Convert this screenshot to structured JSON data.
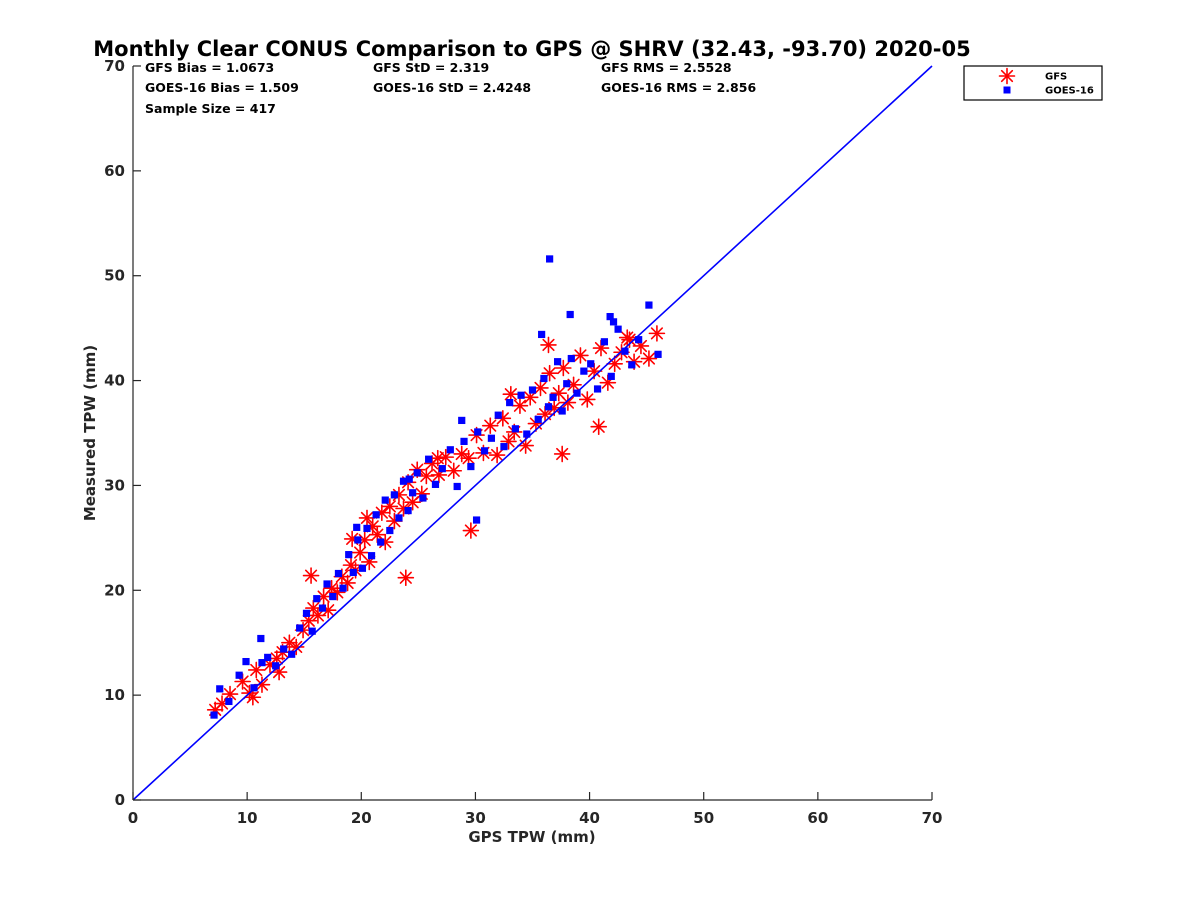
{
  "chart_data": {
    "type": "scatter",
    "title": "Monthly Clear CONUS Comparison to GPS @ SHRV (32.43, -93.70) 2020-05",
    "xlabel": "GPS TPW (mm)",
    "ylabel": "Measured TPW (mm)",
    "xlim": [
      0,
      70
    ],
    "ylim": [
      0,
      70
    ],
    "xticks": [
      "0",
      "10",
      "20",
      "30",
      "40",
      "50",
      "60",
      "70"
    ],
    "yticks": [
      "0",
      "10",
      "20",
      "30",
      "40",
      "50",
      "60",
      "70"
    ],
    "grid": false,
    "legend_position": "top-right",
    "reference_line": {
      "x": [
        0,
        70
      ],
      "y": [
        0,
        70
      ],
      "color": "#0000ff"
    },
    "stats": [
      [
        "GFS Bias = 1.0673",
        "GFS StD = 2.319",
        "GFS RMS = 2.5528"
      ],
      [
        "GOES-16 Bias = 1.509",
        "GOES-16 StD = 2.4248",
        "GOES-16 RMS = 2.856"
      ],
      [
        "Sample Size = 417"
      ]
    ],
    "series": [
      {
        "name": "GFS",
        "marker": "asterisk",
        "color": "#ff0000",
        "x": [
          7.2,
          7.8,
          8.5,
          9.6,
          10.2,
          10.8,
          11.3,
          12.0,
          12.6,
          13.1,
          13.7,
          14.3,
          14.9,
          15.4,
          15.8,
          16.2,
          16.7,
          17.1,
          17.4,
          17.9,
          18.3,
          18.8,
          19.1,
          19.5,
          19.9,
          20.3,
          20.7,
          21.0,
          21.4,
          21.8,
          22.1,
          22.5,
          22.9,
          23.3,
          23.7,
          24.1,
          24.5,
          24.9,
          25.3,
          25.7,
          26.2,
          26.8,
          27.4,
          28.1,
          28.8,
          29.4,
          30.1,
          30.7,
          31.3,
          31.9,
          32.4,
          32.9,
          33.4,
          33.9,
          34.4,
          34.8,
          35.3,
          35.7,
          36.1,
          36.5,
          36.9,
          37.3,
          37.7,
          38.1,
          38.6,
          39.2,
          39.8,
          40.4,
          41.0,
          41.6,
          42.2,
          42.8,
          43.3,
          43.9,
          44.5,
          45.2,
          45.9,
          15.6,
          20.5,
          23.9,
          29.6,
          37.6,
          40.8,
          43.5,
          36.4,
          33.1,
          26.7,
          19.2,
          12.8,
          10.5
        ],
        "y": [
          8.6,
          9.2,
          10.1,
          11.3,
          10.2,
          12.4,
          11.0,
          12.9,
          13.5,
          14.1,
          15.0,
          14.6,
          16.2,
          17.1,
          18.3,
          17.6,
          19.4,
          18.1,
          20.2,
          19.8,
          21.3,
          20.7,
          22.4,
          21.9,
          23.6,
          24.8,
          22.7,
          26.1,
          25.3,
          27.4,
          24.6,
          28.0,
          26.6,
          29.1,
          27.8,
          30.3,
          28.4,
          31.5,
          29.2,
          30.9,
          32.1,
          31.0,
          32.7,
          31.4,
          33.0,
          32.6,
          34.8,
          33.1,
          35.7,
          32.9,
          36.4,
          34.2,
          35.1,
          37.6,
          33.8,
          38.4,
          35.9,
          39.3,
          36.8,
          40.7,
          37.4,
          38.8,
          41.2,
          37.9,
          39.6,
          42.4,
          38.2,
          40.9,
          43.1,
          39.8,
          41.6,
          42.7,
          44.1,
          41.8,
          43.3,
          42.1,
          44.5,
          21.4,
          26.9,
          21.2,
          25.7,
          33.0,
          35.6,
          43.9,
          43.4,
          38.7,
          32.6,
          24.9,
          12.2,
          9.8
        ]
      },
      {
        "name": "GOES-16",
        "marker": "square",
        "color": "#0000ff",
        "x": [
          7.1,
          7.6,
          8.4,
          9.3,
          9.9,
          10.6,
          11.2,
          11.8,
          12.5,
          13.2,
          13.9,
          14.6,
          15.2,
          15.7,
          16.1,
          16.6,
          17.0,
          17.5,
          18.0,
          18.4,
          18.9,
          19.3,
          19.7,
          20.1,
          20.5,
          20.9,
          21.3,
          21.7,
          22.1,
          22.5,
          22.9,
          23.3,
          23.7,
          24.1,
          24.5,
          24.9,
          25.4,
          25.9,
          26.5,
          27.1,
          27.8,
          28.4,
          29.0,
          29.6,
          30.2,
          30.8,
          31.4,
          32.0,
          32.5,
          33.0,
          33.5,
          34.0,
          34.5,
          35.0,
          35.5,
          36.0,
          36.4,
          36.8,
          37.2,
          37.6,
          38.0,
          38.4,
          38.9,
          39.5,
          40.1,
          40.7,
          41.3,
          41.9,
          42.5,
          43.1,
          43.7,
          44.3,
          45.2,
          46.0,
          36.5,
          38.3,
          41.8,
          28.8,
          19.6,
          24.2,
          11.3,
          42.1,
          35.8,
          30.1
        ],
        "y": [
          8.1,
          10.6,
          9.4,
          11.9,
          13.2,
          10.7,
          15.4,
          13.6,
          12.8,
          14.4,
          13.9,
          16.4,
          17.8,
          16.1,
          19.2,
          18.3,
          20.6,
          19.4,
          21.6,
          20.2,
          23.4,
          21.7,
          24.8,
          22.1,
          25.9,
          23.3,
          27.2,
          24.6,
          28.6,
          25.7,
          29.1,
          26.9,
          30.4,
          27.6,
          29.3,
          31.2,
          28.8,
          32.5,
          30.1,
          31.6,
          33.4,
          29.9,
          34.2,
          31.8,
          35.1,
          33.3,
          34.5,
          36.7,
          33.7,
          37.9,
          35.4,
          38.6,
          34.9,
          39.1,
          36.3,
          40.2,
          37.5,
          38.4,
          41.8,
          37.1,
          39.7,
          42.1,
          38.8,
          40.9,
          41.6,
          39.2,
          43.7,
          40.4,
          44.9,
          42.8,
          41.5,
          43.9,
          47.2,
          42.5,
          51.6,
          46.3,
          46.1,
          36.2,
          26.0,
          30.6,
          13.1,
          45.6,
          44.4,
          26.7
        ]
      }
    ]
  }
}
